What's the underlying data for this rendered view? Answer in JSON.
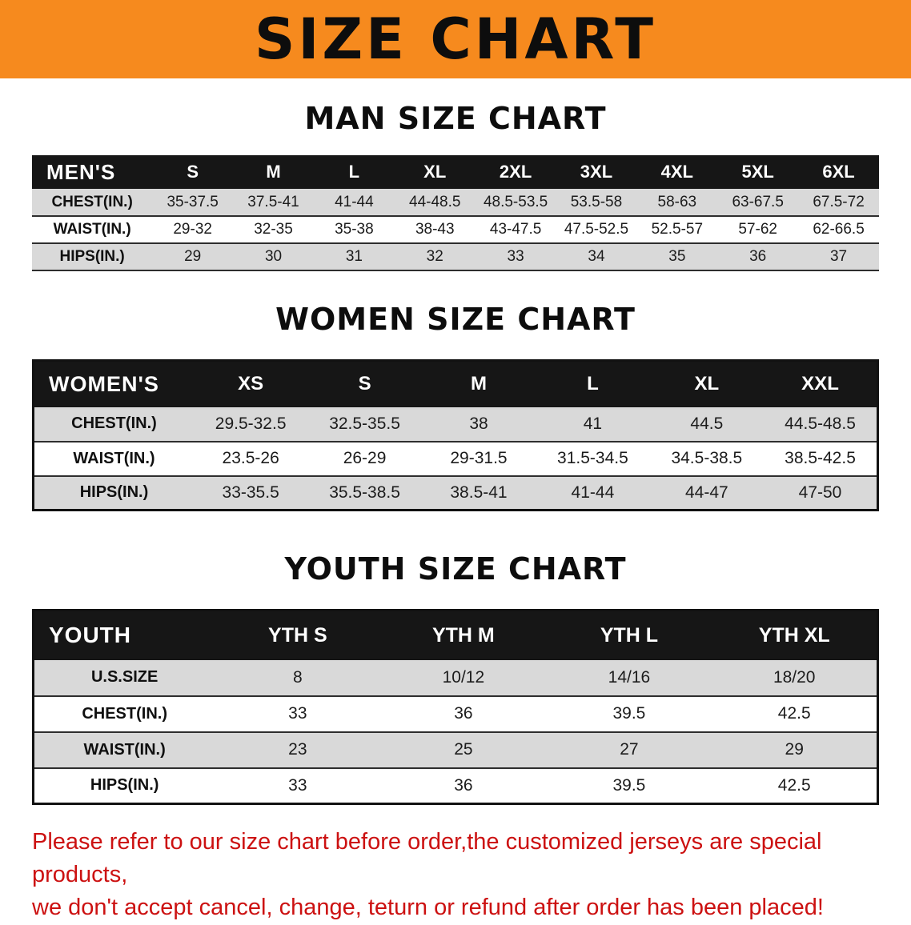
{
  "banner": {
    "title": "SIZE CHART"
  },
  "man": {
    "heading": "MAN SIZE CHART",
    "corner_label": "MEN'S",
    "columns": [
      "S",
      "M",
      "L",
      "XL",
      "2XL",
      "3XL",
      "4XL",
      "5XL",
      "6XL"
    ],
    "rows": [
      {
        "label": "CHEST(IN.)",
        "values": [
          "35-37.5",
          "37.5-41",
          "41-44",
          "44-48.5",
          "48.5-53.5",
          "53.5-58",
          "58-63",
          "63-67.5",
          "67.5-72"
        ]
      },
      {
        "label": "WAIST(IN.)",
        "values": [
          "29-32",
          "32-35",
          "35-38",
          "38-43",
          "43-47.5",
          "47.5-52.5",
          "52.5-57",
          "57-62",
          "62-66.5"
        ]
      },
      {
        "label": "HIPS(IN.)",
        "values": [
          "29",
          "30",
          "31",
          "32",
          "33",
          "34",
          "35",
          "36",
          "37"
        ]
      }
    ]
  },
  "women": {
    "heading": "WOMEN SIZE CHART",
    "corner_label": "WOMEN'S",
    "columns": [
      "XS",
      "S",
      "M",
      "L",
      "XL",
      "XXL"
    ],
    "rows": [
      {
        "label": "CHEST(IN.)",
        "values": [
          "29.5-32.5",
          "32.5-35.5",
          "38",
          "41",
          "44.5",
          "44.5-48.5"
        ]
      },
      {
        "label": "WAIST(IN.)",
        "values": [
          "23.5-26",
          "26-29",
          "29-31.5",
          "31.5-34.5",
          "34.5-38.5",
          "38.5-42.5"
        ]
      },
      {
        "label": "HIPS(IN.)",
        "values": [
          "33-35.5",
          "35.5-38.5",
          "38.5-41",
          "41-44",
          "44-47",
          "47-50"
        ]
      }
    ]
  },
  "youth": {
    "heading": "YOUTH SIZE CHART",
    "corner_label": "YOUTH",
    "columns": [
      "YTH S",
      "YTH M",
      "YTH L",
      "YTH XL"
    ],
    "rows": [
      {
        "label": "U.S.SIZE",
        "values": [
          "8",
          "10/12",
          "14/16",
          "18/20"
        ]
      },
      {
        "label": "CHEST(IN.)",
        "values": [
          "33",
          "36",
          "39.5",
          "42.5"
        ]
      },
      {
        "label": "WAIST(IN.)",
        "values": [
          "23",
          "25",
          "27",
          "29"
        ]
      },
      {
        "label": "HIPS(IN.)",
        "values": [
          "33",
          "36",
          "39.5",
          "42.5"
        ]
      }
    ]
  },
  "footer": {
    "line1": "Please refer to our size chart before order,the customized jerseys are special products,",
    "line2": "we don't accept cancel, change, teturn or refund after order has been placed!"
  },
  "colors": {
    "banner_bg": "#F68A1E",
    "header_bg": "#161616",
    "stripe": "#d9d9d9",
    "note_red": "#cc1111"
  }
}
